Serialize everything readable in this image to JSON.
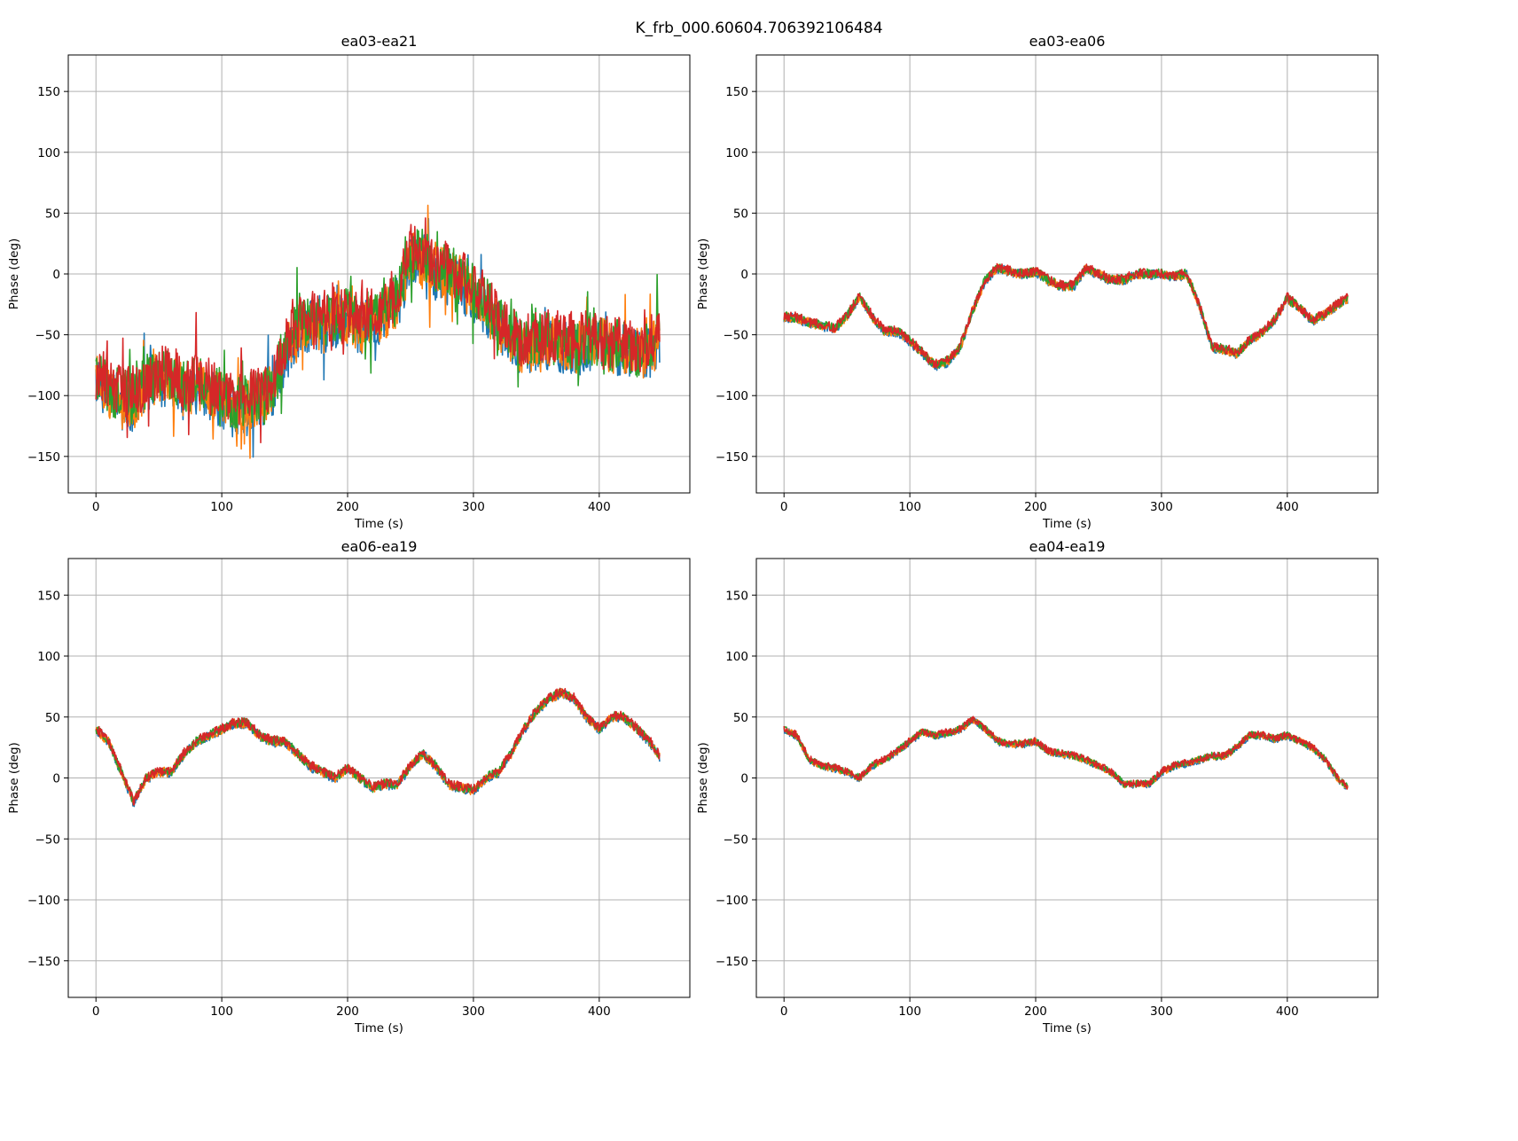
{
  "figure": {
    "suptitle": "K_frb_000.60604.706392106484"
  },
  "chart_data": [
    {
      "type": "line",
      "title": "ea03-ea21",
      "xlabel": "Time (s)",
      "ylabel": "Phase (deg)",
      "xlim": [
        -22,
        472
      ],
      "ylim": [
        -180,
        180
      ],
      "xticks": [
        0,
        100,
        200,
        300,
        400
      ],
      "yticks": [
        -150,
        -100,
        -50,
        0,
        50,
        100,
        150
      ],
      "grid": true,
      "colors": [
        "#1f77b4",
        "#ff7f0e",
        "#2ca02c",
        "#d62728"
      ],
      "noise": 22,
      "spikes": true,
      "x": [
        0,
        10,
        20,
        30,
        40,
        50,
        60,
        70,
        80,
        90,
        100,
        110,
        120,
        130,
        140,
        150,
        160,
        170,
        180,
        190,
        200,
        210,
        220,
        230,
        240,
        250,
        260,
        270,
        280,
        290,
        300,
        310,
        320,
        330,
        340,
        350,
        360,
        370,
        380,
        390,
        400,
        410,
        420,
        430,
        440,
        448
      ],
      "center": [
        -80,
        -95,
        -100,
        -105,
        -90,
        -85,
        -85,
        -95,
        -90,
        -95,
        -100,
        -110,
        -105,
        -100,
        -95,
        -65,
        -45,
        -40,
        -40,
        -35,
        -35,
        -40,
        -35,
        -30,
        -20,
        15,
        15,
        5,
        0,
        -5,
        -15,
        -25,
        -40,
        -50,
        -60,
        -55,
        -55,
        -55,
        -60,
        -55,
        -55,
        -60,
        -60,
        -65,
        -60,
        -55
      ]
    },
    {
      "type": "line",
      "title": "ea03-ea06",
      "xlabel": "Time (s)",
      "ylabel": "Phase (deg)",
      "xlim": [
        -22,
        472
      ],
      "ylim": [
        -180,
        180
      ],
      "xticks": [
        0,
        100,
        200,
        300,
        400
      ],
      "yticks": [
        -150,
        -100,
        -50,
        0,
        50,
        100,
        150
      ],
      "grid": true,
      "colors": [
        "#1f77b4",
        "#ff7f0e",
        "#2ca02c",
        "#d62728"
      ],
      "noise": 4,
      "spikes": false,
      "x": [
        0,
        10,
        20,
        30,
        40,
        50,
        60,
        70,
        80,
        90,
        100,
        110,
        120,
        130,
        140,
        150,
        160,
        170,
        180,
        190,
        200,
        210,
        220,
        230,
        240,
        250,
        260,
        270,
        280,
        290,
        300,
        310,
        320,
        330,
        340,
        350,
        360,
        370,
        380,
        390,
        400,
        410,
        420,
        430,
        440,
        448
      ],
      "center": [
        -35,
        -36,
        -40,
        -42,
        -45,
        -35,
        -18,
        -35,
        -47,
        -47,
        -55,
        -65,
        -75,
        -72,
        -60,
        -30,
        -5,
        5,
        2,
        0,
        2,
        -5,
        -10,
        -10,
        5,
        0,
        -5,
        -5,
        0,
        0,
        0,
        -2,
        0,
        -25,
        -60,
        -62,
        -65,
        -55,
        -48,
        -38,
        -20,
        -28,
        -38,
        -33,
        -25,
        -20
      ]
    },
    {
      "type": "line",
      "title": "ea06-ea19",
      "xlabel": "Time (s)",
      "ylabel": "Phase (deg)",
      "xlim": [
        -22,
        472
      ],
      "ylim": [
        -180,
        180
      ],
      "xticks": [
        0,
        100,
        200,
        300,
        400
      ],
      "yticks": [
        -150,
        -100,
        -50,
        0,
        50,
        100,
        150
      ],
      "grid": true,
      "colors": [
        "#1f77b4",
        "#ff7f0e",
        "#2ca02c",
        "#d62728"
      ],
      "noise": 4,
      "spikes": false,
      "x": [
        0,
        10,
        20,
        30,
        40,
        50,
        60,
        70,
        80,
        90,
        100,
        110,
        120,
        130,
        140,
        150,
        160,
        170,
        180,
        190,
        200,
        210,
        220,
        230,
        240,
        250,
        260,
        270,
        280,
        290,
        300,
        310,
        320,
        330,
        340,
        350,
        360,
        370,
        380,
        390,
        400,
        410,
        420,
        430,
        440,
        448
      ],
      "center": [
        40,
        30,
        5,
        -20,
        0,
        5,
        5,
        20,
        30,
        35,
        40,
        45,
        45,
        35,
        30,
        30,
        20,
        10,
        5,
        0,
        8,
        0,
        -8,
        -5,
        -5,
        10,
        20,
        10,
        -5,
        -8,
        -10,
        0,
        5,
        20,
        40,
        55,
        65,
        70,
        65,
        50,
        40,
        50,
        50,
        40,
        30,
        18
      ]
    },
    {
      "type": "line",
      "title": "ea04-ea19",
      "xlabel": "Time (s)",
      "ylabel": "Phase (deg)",
      "xlim": [
        -22,
        472
      ],
      "ylim": [
        -180,
        180
      ],
      "xticks": [
        0,
        100,
        200,
        300,
        400
      ],
      "yticks": [
        -150,
        -100,
        -50,
        0,
        50,
        100,
        150
      ],
      "grid": true,
      "colors": [
        "#1f77b4",
        "#ff7f0e",
        "#2ca02c",
        "#d62728"
      ],
      "noise": 3,
      "spikes": false,
      "x": [
        0,
        10,
        20,
        30,
        40,
        50,
        60,
        70,
        80,
        90,
        100,
        110,
        120,
        130,
        140,
        150,
        160,
        170,
        180,
        190,
        200,
        210,
        220,
        230,
        240,
        250,
        260,
        270,
        280,
        290,
        300,
        310,
        320,
        330,
        340,
        350,
        360,
        370,
        380,
        390,
        400,
        410,
        420,
        430,
        440,
        448
      ],
      "center": [
        40,
        35,
        15,
        10,
        8,
        5,
        0,
        10,
        15,
        22,
        30,
        38,
        35,
        37,
        40,
        48,
        40,
        30,
        28,
        28,
        30,
        22,
        20,
        18,
        15,
        10,
        5,
        -5,
        -5,
        -5,
        5,
        10,
        12,
        15,
        18,
        18,
        25,
        35,
        35,
        32,
        35,
        30,
        25,
        15,
        0,
        -8
      ]
    }
  ]
}
